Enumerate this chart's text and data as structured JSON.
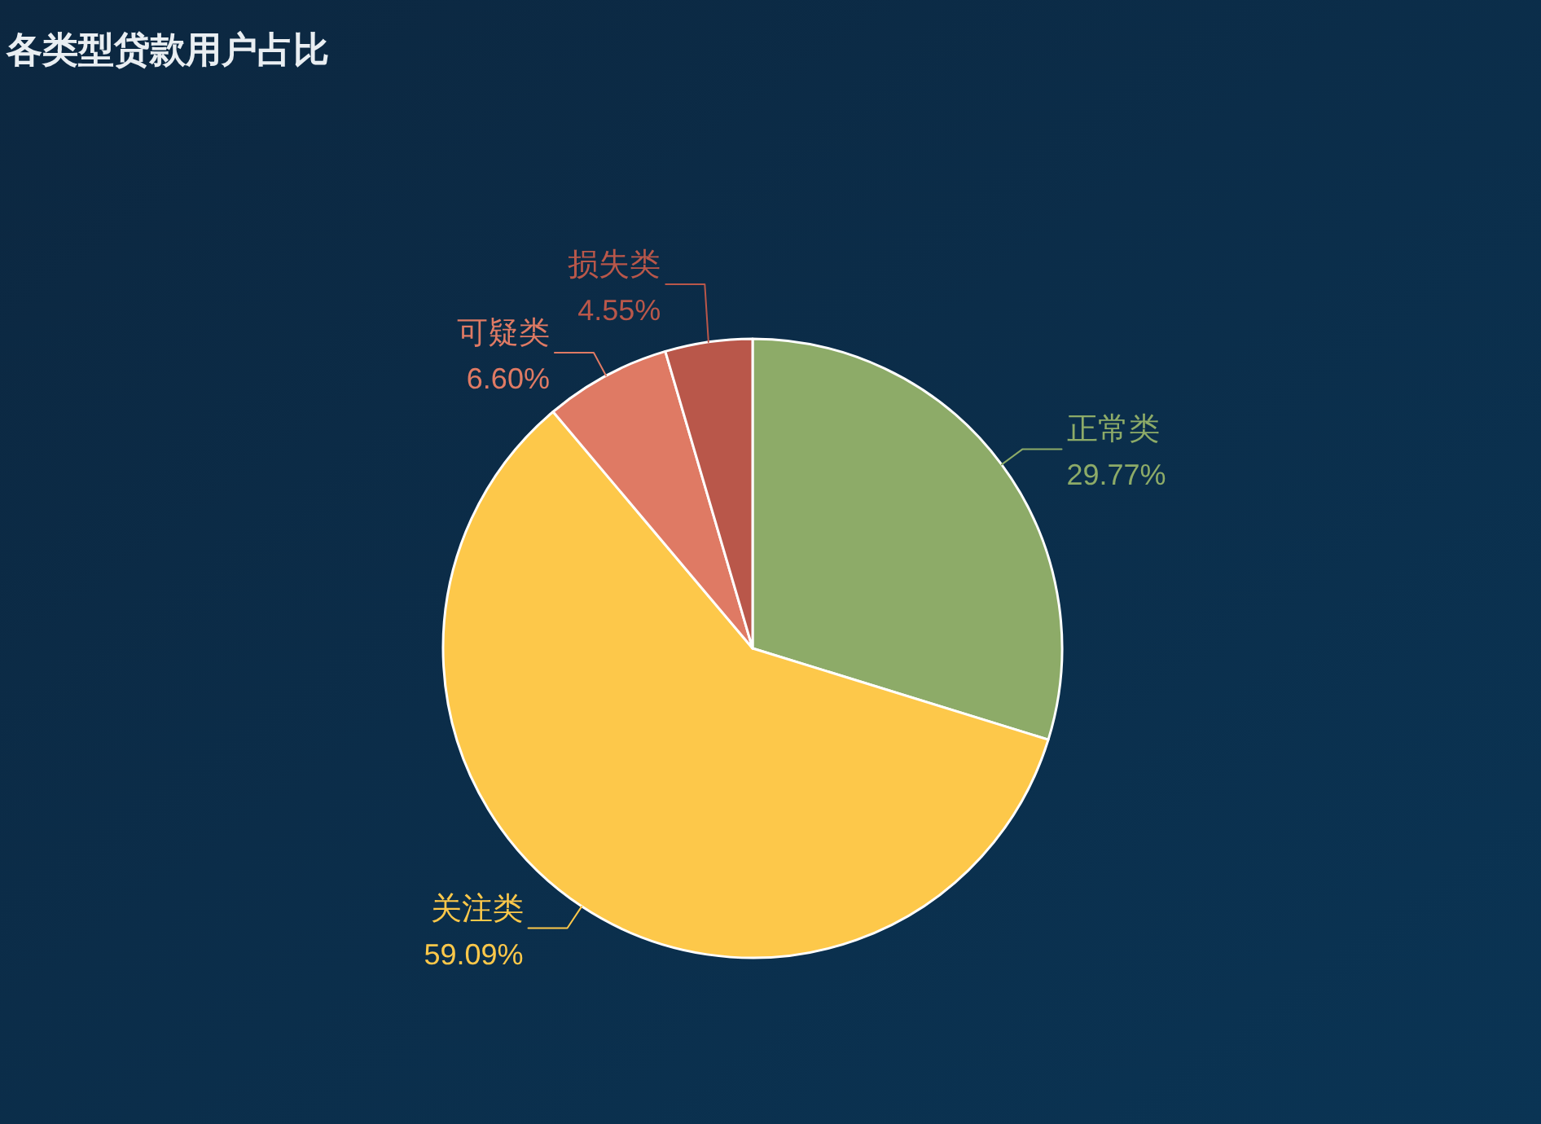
{
  "chart_data": {
    "type": "pie",
    "title": "各类型贷款用户占比",
    "categories": [
      "正常类",
      "关注类",
      "可疑类",
      "损失类"
    ],
    "values": [
      29.77,
      59.09,
      6.6,
      4.55
    ],
    "colors": [
      "#8dab68",
      "#fdc84a",
      "#df7a64",
      "#b9574a"
    ],
    "value_labels": [
      "29.77%",
      "59.09%",
      "6.60%",
      "4.55%"
    ]
  }
}
